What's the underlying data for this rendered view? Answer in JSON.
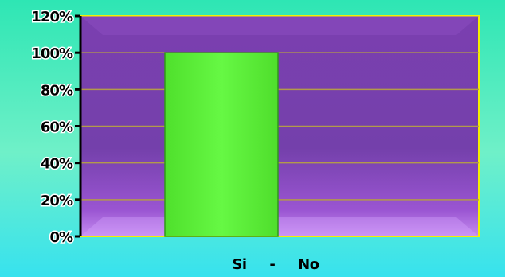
{
  "chart_data": {
    "type": "bar",
    "categories": [
      "Si     -     No"
    ],
    "values": [
      100
    ],
    "ylim": [
      0,
      120
    ],
    "yticks": [
      "0%",
      "20%",
      "40%",
      "60%",
      "80%",
      "100%",
      "120%"
    ],
    "ytick_values": [
      0,
      20,
      40,
      60,
      80,
      100,
      120
    ],
    "grid": true,
    "legend": "none"
  },
  "colors": {
    "background": "#3ee8c0",
    "plot_area": "#7a3fae",
    "bar": "#5cf03a",
    "plot_border": "#f3f000",
    "gridline": "#b39a4a"
  }
}
